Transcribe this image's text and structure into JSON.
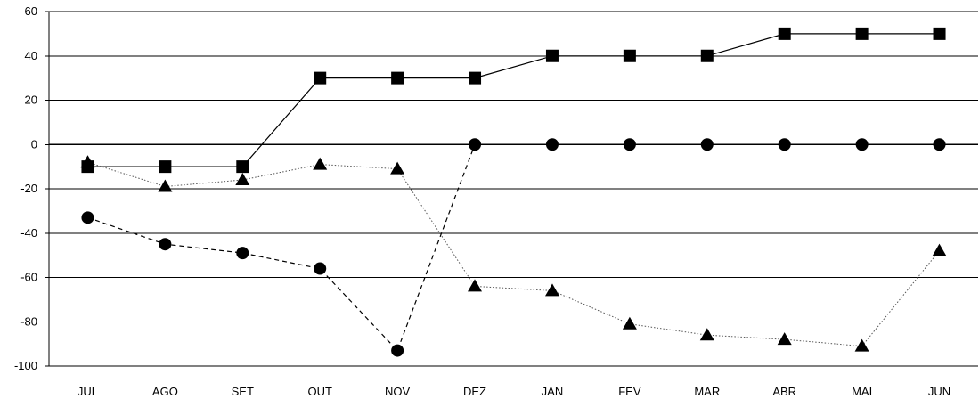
{
  "chart_data": {
    "type": "line",
    "categories": [
      "JUL",
      "AGO",
      "SET",
      "OUT",
      "NOV",
      "DEZ",
      "JAN",
      "FEV",
      "MAR",
      "ABR",
      "MAI",
      "JUN"
    ],
    "ylim": [
      -100,
      60
    ],
    "yticks": [
      -100,
      -80,
      -60,
      -40,
      -20,
      0,
      20,
      40,
      60
    ],
    "grid": true,
    "series": [
      {
        "marker": "square",
        "line": "solid",
        "values": [
          -10,
          -10,
          -10,
          30,
          30,
          30,
          40,
          40,
          40,
          50,
          50,
          50
        ]
      },
      {
        "marker": "circle",
        "line": "dashed",
        "values": [
          -33,
          -45,
          -49,
          -56,
          -93,
          0,
          0,
          0,
          0,
          0,
          0,
          0
        ]
      },
      {
        "marker": "triangle",
        "line": "dotted",
        "values": [
          -8,
          -19,
          -16,
          -9,
          -11,
          -64,
          -66,
          -81,
          -86,
          -88,
          -91,
          -48
        ]
      }
    ]
  }
}
